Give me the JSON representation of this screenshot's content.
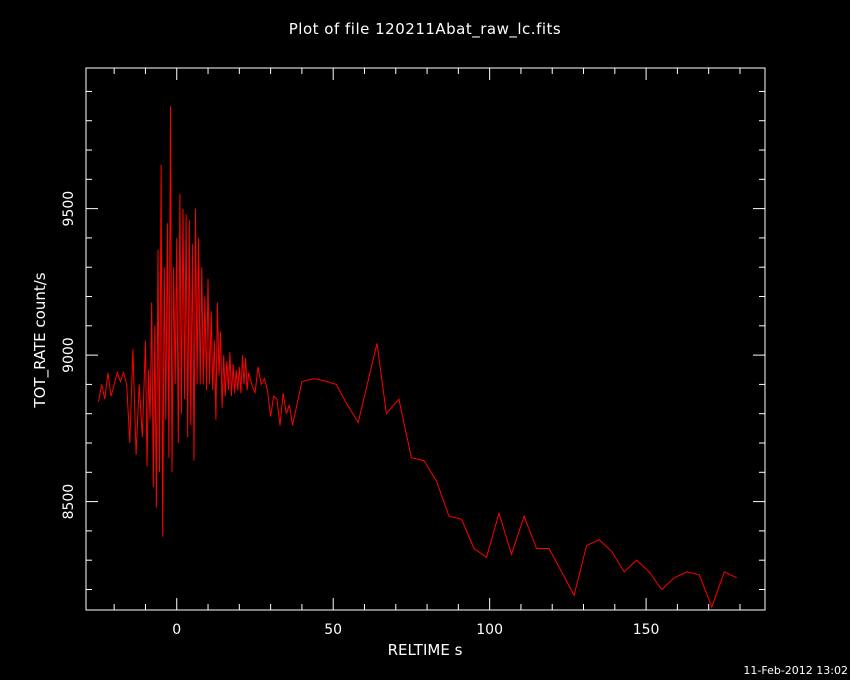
{
  "stamp": "11-Feb-2012 13:02",
  "chart_data": {
    "type": "line",
    "title": "Plot of file 120211Abat_raw_lc.fits",
    "xlabel": "RELTIME   s",
    "ylabel": "TOT_RATE   count/s",
    "xlim": [
      -29,
      188
    ],
    "ylim": [
      8130,
      9980
    ],
    "xticks": [
      0,
      50,
      100,
      150
    ],
    "yticks": [
      8500,
      9000,
      9500
    ],
    "colors": {
      "background": "#000000",
      "axes": "#ffffff",
      "line": "#ff0000"
    },
    "series": [
      {
        "x": [
          -25,
          -24,
          -23,
          -22,
          -21,
          -20,
          -19,
          -18,
          -17,
          -16,
          -15,
          -14,
          -13,
          -12,
          -11,
          -10,
          -9.5,
          -9,
          -8.5,
          -8,
          -7.5,
          -7,
          -6.5,
          -6,
          -5.5,
          -5,
          -4.5,
          -4,
          -3.5,
          -3,
          -2.5,
          -2,
          -1.5,
          -1,
          -0.5,
          0,
          0.5,
          1,
          1.5,
          2,
          2.5,
          3,
          3.5,
          4,
          4.5,
          5,
          5.5,
          6,
          6.5,
          7,
          7.5,
          8,
          8.5,
          9,
          9.5,
          10,
          10.5,
          11,
          11.5,
          12,
          12.5,
          13,
          13.5,
          14,
          14.5,
          15,
          15.5,
          16,
          16.5,
          17,
          17.5,
          18,
          18.5,
          19,
          19.5,
          20,
          20.5,
          21,
          21.5,
          22,
          22.5,
          23,
          24,
          25,
          26,
          27,
          28,
          29,
          30,
          31,
          32,
          33,
          34,
          35,
          36,
          37,
          40,
          44,
          48,
          51,
          54,
          58,
          64,
          67,
          71,
          75,
          79,
          83,
          87,
          91,
          95,
          99,
          103,
          107,
          111,
          115,
          119,
          123,
          127,
          131,
          135,
          139,
          143,
          147,
          151,
          155,
          159,
          163,
          167,
          171,
          175,
          179
        ],
        "y": [
          8840,
          8900,
          8850,
          8940,
          8860,
          8900,
          8940,
          8910,
          8940,
          8900,
          8700,
          9020,
          8660,
          8900,
          8720,
          9050,
          8620,
          8950,
          8780,
          9180,
          8550,
          9100,
          8480,
          9360,
          8600,
          9650,
          8380,
          9300,
          8780,
          9450,
          8650,
          9850,
          8600,
          9300,
          8900,
          9400,
          8700,
          9550,
          8800,
          9500,
          8850,
          9480,
          8720,
          9460,
          8760,
          9380,
          8640,
          9500,
          8900,
          9400,
          8900,
          9300,
          8900,
          9200,
          8880,
          9260,
          8900,
          9150,
          8880,
          9050,
          8780,
          9180,
          8930,
          9080,
          8820,
          9000,
          8860,
          8980,
          8880,
          9010,
          8860,
          8970,
          8870,
          8950,
          8880,
          8960,
          8870,
          9000,
          8900,
          8990,
          8880,
          8940,
          8900,
          8870,
          8960,
          8900,
          8920,
          8880,
          8790,
          8860,
          8850,
          8760,
          8870,
          8800,
          8830,
          8760,
          8910,
          8920,
          8910,
          8900,
          8840,
          8770,
          9040,
          8800,
          8850,
          8650,
          8640,
          8570,
          8450,
          8440,
          8340,
          8310,
          8460,
          8320,
          8450,
          8340,
          8340,
          8260,
          8180,
          8350,
          8370,
          8330,
          8260,
          8300,
          8260,
          8200,
          8240,
          8260,
          8250,
          8140,
          8260,
          8240
        ]
      }
    ]
  }
}
